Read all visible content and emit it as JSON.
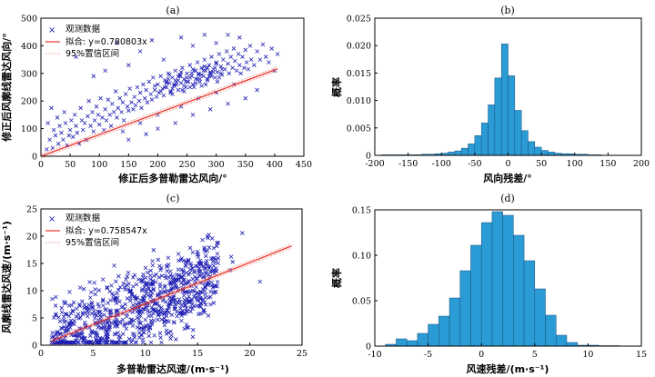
{
  "chart_data": [
    {
      "id": "a",
      "title": "(a)",
      "type": "scatter",
      "xlabel": "修正后多普勒雷达风向/°",
      "ylabel": "修正后风廓线雷达风向/°",
      "xlim": [
        0,
        450
      ],
      "ylim": [
        0,
        500
      ],
      "xticks": [
        0,
        50,
        100,
        150,
        200,
        250,
        300,
        350,
        400,
        450
      ],
      "yticks": [
        0,
        100,
        200,
        300,
        400,
        500
      ],
      "legend": {
        "position": "top-left",
        "entries": [
          "观测数据",
          "拟合: y=0.780803x",
          "95%置信区间"
        ]
      },
      "fit_slope": 0.780803,
      "fit_label": "拟合: y=0.780803x",
      "fit_xrange": [
        0,
        405
      ],
      "colors": {
        "points": "#1f1fb4",
        "fit": "#e8352b",
        "ci": "#f4a6a0"
      },
      "points": [
        [
          10,
          25
        ],
        [
          12,
          120
        ],
        [
          15,
          60
        ],
        [
          18,
          175
        ],
        [
          20,
          30
        ],
        [
          22,
          95
        ],
        [
          25,
          75
        ],
        [
          28,
          140
        ],
        [
          30,
          45
        ],
        [
          32,
          110
        ],
        [
          35,
          85
        ],
        [
          38,
          60
        ],
        [
          40,
          160
        ],
        [
          42,
          120
        ],
        [
          45,
          40
        ],
        [
          48,
          75
        ],
        [
          50,
          95
        ],
        [
          52,
          130
        ],
        [
          55,
          70
        ],
        [
          58,
          150
        ],
        [
          60,
          110
        ],
        [
          62,
          85
        ],
        [
          65,
          45
        ],
        [
          68,
          175
        ],
        [
          70,
          130
        ],
        [
          72,
          95
        ],
        [
          75,
          120
        ],
        [
          78,
          60
        ],
        [
          80,
          145
        ],
        [
          82,
          200
        ],
        [
          85,
          110
        ],
        [
          88,
          160
        ],
        [
          90,
          90
        ],
        [
          92,
          130
        ],
        [
          95,
          180
        ],
        [
          98,
          150
        ],
        [
          100,
          115
        ],
        [
          102,
          210
        ],
        [
          105,
          140
        ],
        [
          108,
          95
        ],
        [
          110,
          170
        ],
        [
          112,
          130
        ],
        [
          115,
          205
        ],
        [
          118,
          150
        ],
        [
          120,
          110
        ],
        [
          122,
          190
        ],
        [
          125,
          160
        ],
        [
          128,
          235
        ],
        [
          130,
          140
        ],
        [
          132,
          175
        ],
        [
          135,
          210
        ],
        [
          138,
          160
        ],
        [
          140,
          195
        ],
        [
          142,
          130
        ],
        [
          145,
          225
        ],
        [
          148,
          180
        ],
        [
          150,
          165
        ],
        [
          152,
          245
        ],
        [
          155,
          195
        ],
        [
          158,
          170
        ],
        [
          160,
          215
        ],
        [
          162,
          185
        ],
        [
          165,
          250
        ],
        [
          168,
          200
        ],
        [
          170,
          230
        ],
        [
          172,
          175
        ],
        [
          175,
          260
        ],
        [
          178,
          210
        ],
        [
          180,
          240
        ],
        [
          182,
          195
        ],
        [
          185,
          270
        ],
        [
          188,
          225
        ],
        [
          190,
          205
        ],
        [
          192,
          285
        ],
        [
          195,
          240
        ],
        [
          198,
          215
        ],
        [
          200,
          260
        ],
        [
          202,
          230
        ],
        [
          205,
          290
        ],
        [
          208,
          245
        ],
        [
          210,
          220
        ],
        [
          212,
          275
        ],
        [
          215,
          250
        ],
        [
          218,
          300
        ],
        [
          220,
          265
        ],
        [
          222,
          235
        ],
        [
          225,
          285
        ],
        [
          228,
          255
        ],
        [
          230,
          310
        ],
        [
          232,
          270
        ],
        [
          235,
          240
        ],
        [
          238,
          295
        ],
        [
          240,
          265
        ],
        [
          242,
          320
        ],
        [
          245,
          280
        ],
        [
          248,
          250
        ],
        [
          250,
          300
        ],
        [
          252,
          270
        ],
        [
          255,
          330
        ],
        [
          258,
          290
        ],
        [
          260,
          260
        ],
        [
          262,
          310
        ],
        [
          265,
          280
        ],
        [
          268,
          340
        ],
        [
          270,
          300
        ],
        [
          272,
          270
        ],
        [
          275,
          320
        ],
        [
          278,
          290
        ],
        [
          280,
          350
        ],
        [
          282,
          310
        ],
        [
          285,
          280
        ],
        [
          288,
          330
        ],
        [
          290,
          300
        ],
        [
          292,
          360
        ],
        [
          295,
          315
        ],
        [
          298,
          285
        ],
        [
          300,
          340
        ],
        [
          302,
          305
        ],
        [
          305,
          370
        ],
        [
          308,
          325
        ],
        [
          310,
          295
        ],
        [
          312,
          350
        ],
        [
          315,
          315
        ],
        [
          318,
          380
        ],
        [
          320,
          335
        ],
        [
          322,
          300
        ],
        [
          325,
          360
        ],
        [
          328,
          320
        ],
        [
          330,
          390
        ],
        [
          332,
          345
        ],
        [
          335,
          310
        ],
        [
          338,
          370
        ],
        [
          340,
          330
        ],
        [
          342,
          300
        ],
        [
          345,
          360
        ],
        [
          348,
          320
        ],
        [
          350,
          385
        ],
        [
          352,
          340
        ],
        [
          355,
          315
        ],
        [
          358,
          400
        ],
        [
          360,
          350
        ],
        [
          365,
          330
        ],
        [
          370,
          380
        ],
        [
          375,
          350
        ],
        [
          380,
          405
        ],
        [
          385,
          360
        ],
        [
          390,
          340
        ],
        [
          395,
          390
        ],
        [
          400,
          310
        ],
        [
          405,
          370
        ],
        [
          60,
          360
        ],
        [
          90,
          290
        ],
        [
          110,
          310
        ],
        [
          130,
          410
        ],
        [
          150,
          330
        ],
        [
          170,
          380
        ],
        [
          190,
          420
        ],
        [
          210,
          350
        ],
        [
          240,
          430
        ],
        [
          260,
          400
        ],
        [
          280,
          440
        ],
        [
          300,
          410
        ],
        [
          320,
          440
        ],
        [
          340,
          430
        ],
        [
          150,
          60
        ],
        [
          180,
          80
        ],
        [
          200,
          100
        ],
        [
          230,
          120
        ],
        [
          260,
          150
        ],
        [
          290,
          170
        ],
        [
          320,
          190
        ],
        [
          350,
          210
        ],
        [
          370,
          240
        ],
        [
          240,
          180
        ],
        [
          270,
          210
        ],
        [
          300,
          230
        ],
        [
          330,
          260
        ],
        [
          200,
          150
        ],
        [
          170,
          120
        ],
        [
          140,
          90
        ],
        [
          215,
          265
        ],
        [
          225,
          245
        ],
        [
          235,
          275
        ],
        [
          245,
          255
        ],
        [
          255,
          285
        ],
        [
          265,
          265
        ],
        [
          275,
          295
        ],
        [
          285,
          275
        ],
        [
          295,
          305
        ],
        [
          305,
          285
        ],
        [
          218,
          280
        ],
        [
          228,
          260
        ],
        [
          238,
          290
        ],
        [
          248,
          270
        ],
        [
          258,
          300
        ],
        [
          268,
          280
        ],
        [
          278,
          310
        ],
        [
          288,
          290
        ],
        [
          298,
          320
        ],
        [
          308,
          300
        ],
        [
          212,
          250
        ],
        [
          222,
          230
        ],
        [
          232,
          260
        ],
        [
          242,
          240
        ],
        [
          252,
          270
        ],
        [
          262,
          250
        ],
        [
          272,
          280
        ],
        [
          282,
          260
        ],
        [
          292,
          290
        ],
        [
          302,
          270
        ],
        [
          220,
          295
        ],
        [
          230,
          275
        ],
        [
          240,
          305
        ],
        [
          250,
          285
        ],
        [
          260,
          315
        ],
        [
          270,
          295
        ],
        [
          280,
          325
        ],
        [
          290,
          305
        ],
        [
          300,
          335
        ],
        [
          310,
          315
        ],
        [
          195,
          255
        ],
        [
          205,
          235
        ],
        [
          215,
          270
        ],
        [
          225,
          225
        ],
        [
          235,
          290
        ],
        [
          245,
          235
        ],
        [
          255,
          250
        ],
        [
          265,
          310
        ],
        [
          275,
          255
        ],
        [
          285,
          320
        ]
      ]
    },
    {
      "id": "b",
      "title": "(b)",
      "type": "bar",
      "xlabel": "风向残差/°",
      "ylabel": "概率",
      "xlim": [
        -200,
        200
      ],
      "ylim": [
        0,
        0.025
      ],
      "xticks": [
        -200,
        -150,
        -100,
        -50,
        0,
        50,
        100,
        150,
        200
      ],
      "yticks": [
        0,
        0.005,
        0.01,
        0.015,
        0.02,
        0.025
      ],
      "ytick_labels": [
        "0",
        "0.005",
        "0.010",
        "0.015",
        "0.020",
        "0.025"
      ],
      "color": "#2b9bd6",
      "bin_width": 10,
      "bins_start": -190,
      "values": [
        0.0001,
        0.0001,
        0.0001,
        0.0001,
        0.0001,
        0.0001,
        0.0002,
        0.0002,
        0.0003,
        0.0004,
        0.0006,
        0.0008,
        0.0013,
        0.0021,
        0.0036,
        0.0059,
        0.0092,
        0.0141,
        0.0203,
        0.0145,
        0.0082,
        0.0045,
        0.0025,
        0.0015,
        0.0009,
        0.0006,
        0.0004,
        0.0003,
        0.0003,
        0.0002,
        0.0002,
        0.0001,
        0.0001
      ]
    },
    {
      "id": "c",
      "title": "(c)",
      "type": "scatter",
      "xlabel": "多普勒雷达风速/(m·s⁻¹)",
      "ylabel": "风廓线雷达风速/(m·s⁻¹)",
      "xlim": [
        0,
        25
      ],
      "ylim": [
        0,
        25
      ],
      "xticks": [
        0,
        5,
        10,
        15,
        20,
        25
      ],
      "yticks": [
        0,
        5,
        10,
        15,
        20,
        25
      ],
      "legend": {
        "position": "top-left",
        "entries": [
          "观测数据",
          "拟合: y=0.758547x",
          "95%置信区间"
        ]
      },
      "fit_slope": 0.758547,
      "fit_label": "拟合: y=0.758547x",
      "fit_xrange": [
        1,
        24
      ],
      "colors": {
        "points": "#1f1fb4",
        "fit": "#e8352b",
        "ci": "#f4a6a0"
      }
    },
    {
      "id": "d",
      "title": "(d)",
      "type": "bar",
      "xlabel": "风速残差/(m·s⁻¹)",
      "ylabel": "概率",
      "xlim": [
        -10,
        15
      ],
      "ylim": [
        0,
        0.15
      ],
      "xticks": [
        -10,
        -5,
        0,
        5,
        10,
        15
      ],
      "yticks": [
        0,
        0.05,
        0.1,
        0.15
      ],
      "ytick_labels": [
        "0",
        "0.05",
        "0.10",
        "0.15"
      ],
      "color": "#2b9bd6",
      "bin_width": 1,
      "bins_start": -9,
      "values": [
        0.002,
        0.008,
        0.006,
        0.014,
        0.024,
        0.033,
        0.053,
        0.083,
        0.111,
        0.136,
        0.148,
        0.144,
        0.122,
        0.094,
        0.063,
        0.034,
        0.012,
        0.004,
        0.001,
        0.001,
        0.0005,
        0.0005
      ]
    }
  ]
}
